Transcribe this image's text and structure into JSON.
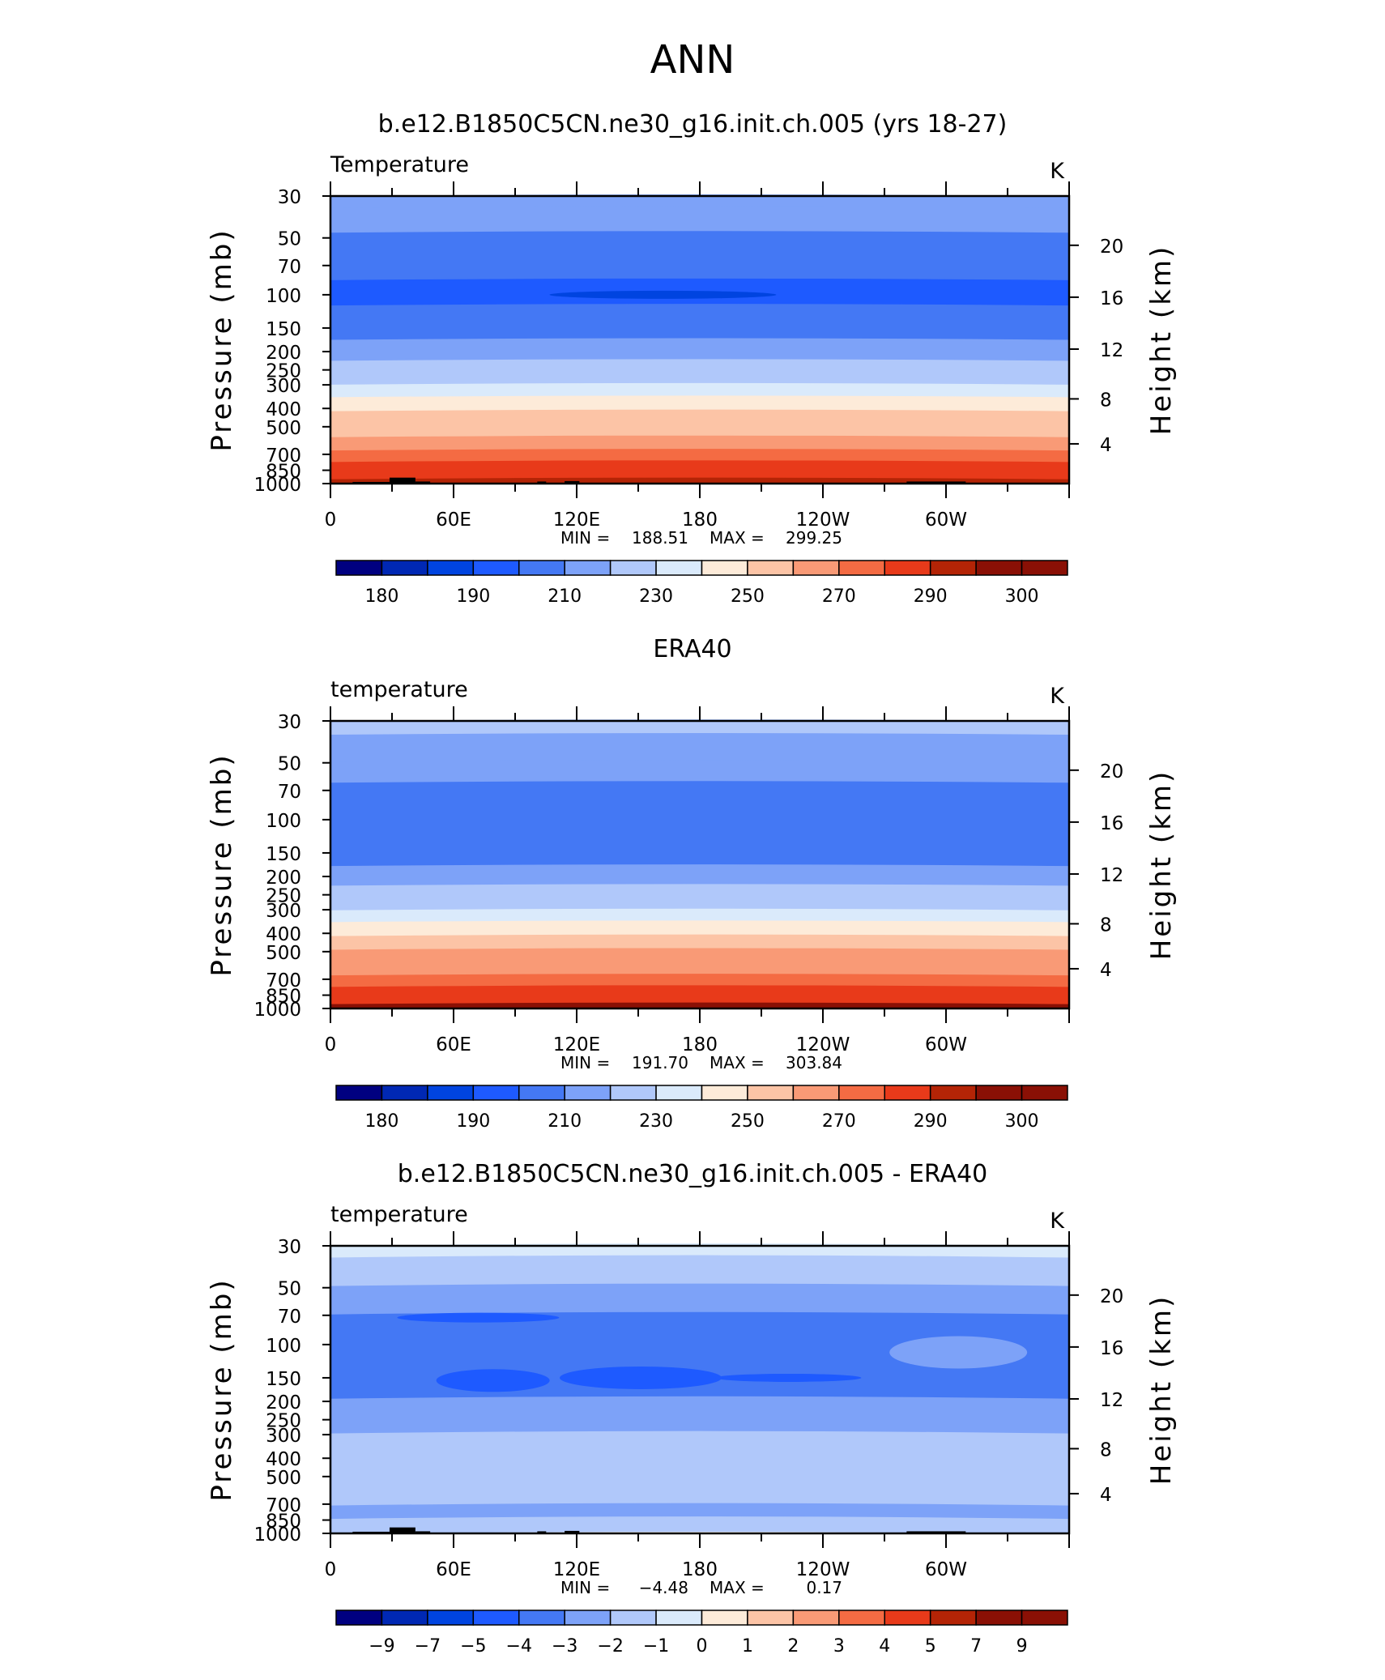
{
  "figure": {
    "title": "ANN"
  },
  "chart_data": [
    {
      "type": "heatmap",
      "title": "b.e12.B1850C5CN.ne30_g16.init.ch.005 (yrs 18-27)",
      "left_string": "Temperature",
      "units": "K",
      "ylabel": "Pressure (mb)",
      "y2label": "Height (km)",
      "y_ticks": [
        "30",
        "50",
        "70",
        "100",
        "150",
        "200",
        "250",
        "300",
        "400",
        "500",
        "700",
        "850",
        "1000"
      ],
      "y2_ticks": [
        "20",
        "16",
        "12",
        "8",
        "4"
      ],
      "x_ticks": [
        "0",
        "60E",
        "120E",
        "180",
        "120W",
        "60W"
      ],
      "stats": {
        "min_label": "MIN =",
        "min": "188.51",
        "max_label": "MAX =",
        "max": "299.25"
      },
      "colorbar_labels": [
        "180",
        "190",
        "210",
        "230",
        "250",
        "270",
        "290",
        "300"
      ],
      "ylim": [
        1000,
        30
      ],
      "xlim": [
        0,
        360
      ],
      "levels": [
        {
          "p": 30,
          "v": 219
        },
        {
          "p": 40,
          "v": 214
        },
        {
          "p": 55,
          "v": 209
        },
        {
          "p": 70,
          "v": 203
        },
        {
          "p": 100,
          "v": 198
        },
        {
          "p": 130,
          "v": 201
        },
        {
          "p": 150,
          "v": 206
        },
        {
          "p": 200,
          "v": 214
        },
        {
          "p": 250,
          "v": 221
        },
        {
          "p": 280,
          "v": 226
        },
        {
          "p": 320,
          "v": 236
        },
        {
          "p": 380,
          "v": 246
        },
        {
          "p": 450,
          "v": 253
        },
        {
          "p": 520,
          "v": 259
        },
        {
          "p": 620,
          "v": 266
        },
        {
          "p": 720,
          "v": 273
        },
        {
          "p": 820,
          "v": 280
        },
        {
          "p": 900,
          "v": 286
        },
        {
          "p": 1000,
          "v": 293
        }
      ],
      "terrain": true
    },
    {
      "type": "heatmap",
      "title": "ERA40",
      "left_string": "temperature",
      "units": "K",
      "ylabel": "Pressure (mb)",
      "y2label": "Height (km)",
      "y_ticks": [
        "30",
        "50",
        "70",
        "100",
        "150",
        "200",
        "250",
        "300",
        "400",
        "500",
        "700",
        "850",
        "1000"
      ],
      "y2_ticks": [
        "20",
        "16",
        "12",
        "8",
        "4"
      ],
      "x_ticks": [
        "0",
        "60E",
        "120E",
        "180",
        "120W",
        "60W"
      ],
      "stats": {
        "min_label": "MIN =",
        "min": "191.70",
        "max_label": "MAX =",
        "max": "303.84"
      },
      "colorbar_labels": [
        "180",
        "190",
        "210",
        "230",
        "250",
        "270",
        "290",
        "300"
      ],
      "ylim": [
        1000,
        30
      ],
      "xlim": [
        0,
        360
      ],
      "levels": [
        {
          "p": 30,
          "v": 222
        },
        {
          "p": 42,
          "v": 216
        },
        {
          "p": 58,
          "v": 210
        },
        {
          "p": 70,
          "v": 203
        },
        {
          "p": 100,
          "v": 200
        },
        {
          "p": 135,
          "v": 203
        },
        {
          "p": 155,
          "v": 208
        },
        {
          "p": 200,
          "v": 216
        },
        {
          "p": 250,
          "v": 223
        },
        {
          "p": 285,
          "v": 229
        },
        {
          "p": 320,
          "v": 238
        },
        {
          "p": 380,
          "v": 247
        },
        {
          "p": 450,
          "v": 254
        },
        {
          "p": 530,
          "v": 261
        },
        {
          "p": 620,
          "v": 268
        },
        {
          "p": 720,
          "v": 275
        },
        {
          "p": 820,
          "v": 282
        },
        {
          "p": 900,
          "v": 289
        },
        {
          "p": 1000,
          "v": 296
        }
      ],
      "terrain": false
    },
    {
      "type": "heatmap",
      "title": "b.e12.B1850C5CN.ne30_g16.init.ch.005 - ERA40",
      "left_string": "temperature",
      "units": "K",
      "ylabel": "Pressure (mb)",
      "y2label": "Height (km)",
      "y_ticks": [
        "30",
        "50",
        "70",
        "100",
        "150",
        "200",
        "250",
        "300",
        "400",
        "500",
        "700",
        "850",
        "1000"
      ],
      "y2_ticks": [
        "20",
        "16",
        "12",
        "8",
        "4"
      ],
      "x_ticks": [
        "0",
        "60E",
        "120E",
        "180",
        "120W",
        "60W"
      ],
      "stats": {
        "min_label": "MIN =",
        "min": "−4.48",
        "max_label": "MAX =",
        "max": "0.17"
      },
      "colorbar_labels": [
        "−9",
        "−7",
        "−5",
        "−4",
        "−3",
        "−2",
        "−1",
        "0",
        "1",
        "2",
        "3",
        "4",
        "5",
        "7",
        "9"
      ],
      "ylim": [
        1000,
        30
      ],
      "xlim": [
        0,
        360
      ],
      "levels": [
        {
          "p": 30,
          "v": -0.5
        },
        {
          "p": 40,
          "v": -1.5
        },
        {
          "p": 60,
          "v": -2.5
        },
        {
          "p": 80,
          "v": -3.5
        },
        {
          "p": 150,
          "v": -3.5
        },
        {
          "p": 250,
          "v": -2.5
        },
        {
          "p": 350,
          "v": -2
        },
        {
          "p": 500,
          "v": -1.5
        },
        {
          "p": 650,
          "v": -1.5
        },
        {
          "p": 780,
          "v": -2.5
        },
        {
          "p": 900,
          "v": -1.5
        },
        {
          "p": 1000,
          "v": -1.5
        }
      ],
      "terrain": true
    }
  ],
  "colorbar_colors": [
    "#000080",
    "#0028b4",
    "#0044e0",
    "#1e5aff",
    "#4478f4",
    "#7da2f8",
    "#b0c8fa",
    "#daeafb",
    "#fdebd9",
    "#fcc4a6",
    "#f99a76",
    "#f46b43",
    "#e83a1a",
    "#b42406",
    "#8a1005"
  ],
  "colors": {
    "axis": "#000000",
    "terrain": "#000000"
  }
}
